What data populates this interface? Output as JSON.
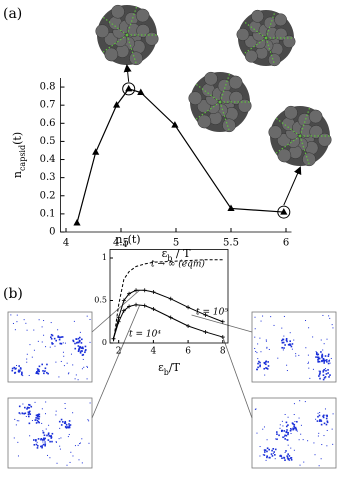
{
  "panel_labels": [
    "(a)",
    "(b)"
  ],
  "chart_data": [
    {
      "type": "line",
      "marker": "triangle",
      "color": "#000000",
      "xlabel": {
        "main": "ε",
        "sub": "b",
        "tail": " / T"
      },
      "ylabel": {
        "main": "n",
        "sub": "capsid",
        "tail": "(t)"
      },
      "x": [
        4.1,
        4.27,
        4.46,
        4.57,
        4.68,
        4.99,
        5.5,
        5.98
      ],
      "values": [
        0.05,
        0.44,
        0.7,
        0.79,
        0.77,
        0.59,
        0.13,
        0.11
      ],
      "circled": [
        3,
        7
      ],
      "xlim": [
        3.95,
        6.05
      ],
      "ylim": [
        0,
        0.85
      ],
      "xticks": [
        4,
        4.5,
        5,
        5.5,
        6
      ],
      "yticks": [
        0,
        0.1,
        0.2,
        0.3,
        0.4,
        0.5,
        0.6,
        0.7,
        0.8
      ]
    },
    {
      "type": "line",
      "ylabel": {
        "main": "n",
        "sub": "4",
        "tail": "(t)"
      },
      "xlabel": {
        "main": "ε",
        "sub": "b",
        "tail": "/T"
      },
      "x": [
        1.7,
        2,
        2.3,
        2.6,
        3,
        3.5,
        4,
        5,
        6,
        7,
        8
      ],
      "series": [
        {
          "name": "t → ∞ (eqm)",
          "color": "#000000",
          "dash": true,
          "values": [
            0.02,
            0.45,
            0.75,
            0.84,
            0.9,
            0.93,
            0.95,
            0.96,
            0.97,
            0.98,
            0.98
          ]
        },
        {
          "name": "t = 10⁵",
          "color": "#000000",
          "dash": false,
          "values": [
            0.05,
            0.3,
            0.5,
            0.58,
            0.62,
            0.62,
            0.6,
            0.52,
            0.42,
            0.33,
            0.25
          ]
        },
        {
          "name": "t = 10⁴",
          "color": "#000000",
          "dash": false,
          "values": [
            0.05,
            0.25,
            0.38,
            0.43,
            0.45,
            0.44,
            0.4,
            0.3,
            0.2,
            0.13,
            0.07
          ]
        }
      ],
      "xlim": [
        1.5,
        8.3
      ],
      "ylim": [
        0,
        1.1
      ],
      "xticks": [
        2,
        4,
        6,
        8
      ],
      "yticks": [
        0,
        0.5,
        1
      ]
    }
  ]
}
